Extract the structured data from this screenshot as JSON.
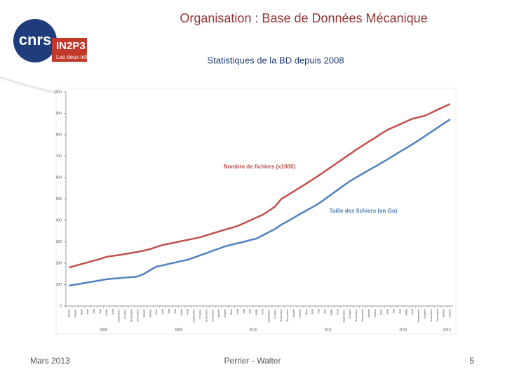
{
  "slide": {
    "title": "Organisation : Base de Données Mécanique",
    "subtitle": "Statistiques de la BD depuis 2008",
    "logo": {
      "mark": "cnrs",
      "name": "IN2P3",
      "tagline": "Les deux infinis"
    },
    "footer_left": "Mars 2013",
    "footer_center": "Perrier - Walter",
    "page_number": "5"
  },
  "chart_data": {
    "type": "line",
    "categories": [
      "Janvier",
      "Février",
      "Mars",
      "Avril",
      "Mai",
      "Juin",
      "Juillet",
      "Août",
      "Septembre",
      "Octobre",
      "Novembre",
      "Décembre",
      "Janvier",
      "Février",
      "Mars",
      "Avril",
      "Mai",
      "Juin",
      "Juillet",
      "Août",
      "Septembre",
      "Octobre",
      "Novembre",
      "Décembre",
      "Janvier",
      "Février",
      "Mars",
      "Avril",
      "Mai",
      "Juin",
      "Juillet",
      "Août",
      "Septembre",
      "Octobre",
      "Novembre",
      "Décembre",
      "Janvier",
      "Février",
      "Mars",
      "Avril",
      "Mai",
      "Juin",
      "Juillet",
      "Août",
      "Septembre",
      "Octobre",
      "Novembre",
      "Décembre",
      "Janvier",
      "Février",
      "Mars",
      "Avril",
      "Mai",
      "Juin",
      "Juillet",
      "Août",
      "Septembre",
      "Octobre",
      "Novembre",
      "Décembre",
      "Janvier",
      "Février"
    ],
    "years": [
      "2008",
      "2009",
      "2010",
      "2011",
      "2012",
      "2013"
    ],
    "series": [
      {
        "name": "Nombre de fichiers (x1000)",
        "color": "#c0504d",
        "values": [
          180,
          188,
          196,
          204,
          212,
          220,
          230,
          234,
          238,
          243,
          248,
          253,
          259,
          266,
          276,
          285,
          291,
          297,
          303,
          309,
          315,
          321,
          330,
          339,
          348,
          357,
          365,
          374,
          387,
          400,
          413,
          426,
          445,
          465,
          500,
          518,
          536,
          554,
          572,
          591,
          610,
          630,
          650,
          670,
          690,
          710,
          731,
          749,
          768,
          786,
          805,
          823,
          836,
          849,
          862,
          875,
          882,
          889,
          903,
          917,
          930,
          944
        ]
      },
      {
        "name": "Taille des fichiers (en Go)",
        "color": "#4f81bd",
        "values": [
          95,
          100,
          105,
          110,
          115,
          120,
          125,
          128,
          130,
          133,
          135,
          138,
          150,
          168,
          184,
          190,
          197,
          203,
          210,
          216,
          226,
          237,
          247,
          258,
          268,
          279,
          286,
          293,
          300,
          308,
          315,
          330,
          345,
          360,
          380,
          396,
          413,
          430,
          446,
          462,
          479,
          500,
          521,
          542,
          563,
          584,
          601,
          618,
          635,
          651,
          668,
          685,
          703,
          721,
          738,
          756,
          774,
          794,
          813,
          833,
          852,
          872
        ]
      }
    ],
    "ylim": [
      0,
      1000
    ],
    "yticks": [
      0,
      100,
      200,
      300,
      400,
      500,
      600,
      700,
      800,
      900,
      1000
    ],
    "grid": false
  }
}
